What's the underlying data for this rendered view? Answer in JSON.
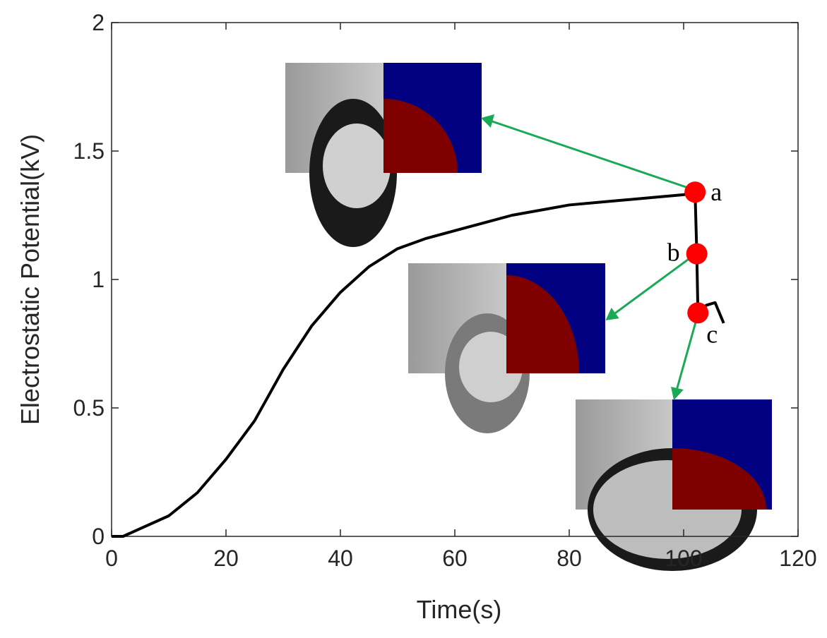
{
  "chart_data": {
    "type": "line",
    "xlabel": "Time(s)",
    "ylabel": "Electrostatic Potential(kV)",
    "xlim": [
      0,
      120
    ],
    "xticks": [
      0,
      20,
      40,
      60,
      80,
      100,
      120
    ],
    "ylim": [
      0,
      2
    ],
    "yticks": [
      0,
      0.5,
      1,
      1.5,
      2
    ],
    "series": [
      {
        "color": "#000000",
        "x": [
          0,
          2,
          5,
          10,
          15,
          20,
          25,
          30,
          35,
          40,
          45,
          50,
          55,
          60,
          65,
          70,
          75,
          80,
          85,
          90,
          95,
          100,
          102,
          102.3,
          102.5,
          104,
          105.5,
          107
        ],
        "values": [
          0,
          0,
          0.03,
          0.08,
          0.17,
          0.3,
          0.45,
          0.65,
          0.82,
          0.95,
          1.05,
          1.12,
          1.16,
          1.19,
          1.22,
          1.25,
          1.27,
          1.29,
          1.3,
          1.31,
          1.32,
          1.33,
          1.34,
          1.1,
          0.87,
          0.9,
          0.91,
          0.83
        ]
      },
      {
        "color": "#ff0000",
        "marker": true,
        "x": [
          102,
          102.3,
          102.5
        ],
        "values": [
          1.34,
          1.1,
          0.87
        ],
        "labels": [
          "a",
          "b",
          "c"
        ]
      }
    ]
  }
}
